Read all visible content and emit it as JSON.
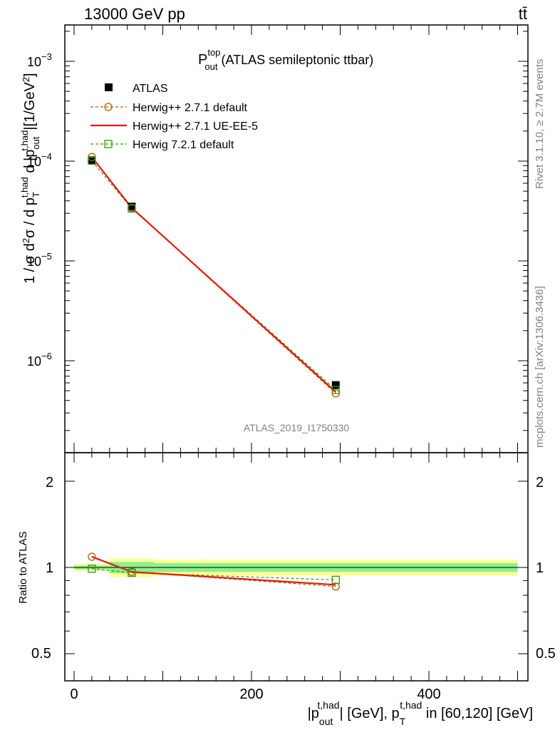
{
  "header": {
    "left": "13000 GeV pp",
    "right": "tt̄"
  },
  "side_labels": {
    "rivet": "Rivet 3.1.10, ≥ 2.7M events",
    "mcplots": "mcplots.cern.ch [arXiv:1306.3436]"
  },
  "plot_title": {
    "main": "P",
    "sup": "top",
    "sub": "out",
    "rest": " (ATLAS semileptonic ttbar)"
  },
  "analysis_id": "ATLAS_2019_I1750330",
  "legend": [
    {
      "label": "ATLAS"
    },
    {
      "label": "Herwig++ 2.7.1 default"
    },
    {
      "label": "Herwig++ 2.7.1 UE-EE-5"
    },
    {
      "label": "Herwig 7.2.1 default"
    }
  ],
  "axes": {
    "ylabel_main": "1 / σ d²σ / d p_T^{t,had} d |p_out^{t,had}| [1/GeV²]",
    "ylabel_ratio": "Ratio to ATLAS",
    "xlabel": "|p_out^{t,had}| [GeV], p_T^{t,had} in [60,120] [GeV]",
    "x_ticks": [
      "0",
      "200",
      "400"
    ],
    "y_ticks_main": [
      "10",
      "10",
      "10",
      "10"
    ],
    "y_ticks_main_exp": [
      "−3",
      "−4",
      "−5",
      "−6"
    ],
    "y_ticks_ratio": [
      "0.5",
      "1",
      "2"
    ]
  },
  "colors": {
    "atlas": "#000000",
    "herwigpp_default": "#b35a00",
    "herwigpp_ueee5": "#e8170c",
    "herwig7": "#2f9a0f",
    "band_inner": "#8cf08c",
    "band_outer": "#ffff99"
  },
  "chart_data": [
    {
      "type": "scatter",
      "title": "P_out^top (ATLAS semileptonic ttbar)",
      "xlabel": "|p_out^{t,had}| [GeV], p_T^{t,had} in [60,120] [GeV]",
      "ylabel": "1 / σ d²σ / d p_T^{t,had} d |p_out^{t,had}| [1/GeV²]",
      "yscale": "log",
      "xlim": [
        -15,
        515
      ],
      "ylim": [
        1.5e-07,
        0.0023
      ],
      "x": [
        20,
        65,
        295
      ],
      "series": [
        {
          "name": "ATLAS",
          "values": [
            0.000102,
            3.5e-05,
            5.7e-07
          ]
        },
        {
          "name": "Herwig++ 2.7.1 default",
          "values": [
            0.00011,
            3.4e-05,
            4.7e-07
          ]
        },
        {
          "name": "Herwig++ 2.7.1 UE-EE-5",
          "values": [
            0.00011,
            3.4e-05,
            4.85e-07
          ]
        },
        {
          "name": "Herwig 7.2.1 default",
          "values": [
            0.000101,
            3.35e-05,
            5.1e-07
          ]
        }
      ]
    },
    {
      "type": "line",
      "ylabel": "Ratio to ATLAS",
      "yscale": "log",
      "xlim": [
        -15,
        515
      ],
      "ylim": [
        0.4,
        2.4
      ],
      "x": [
        20,
        65,
        295
      ],
      "series": [
        {
          "name": "Herwig++ 2.7.1 default",
          "values": [
            1.09,
            0.965,
            0.858
          ]
        },
        {
          "name": "Herwig++ 2.7.1 UE-EE-5",
          "values": [
            1.09,
            0.965,
            0.87
          ]
        },
        {
          "name": "Herwig 7.2.1 default",
          "values": [
            0.99,
            0.958,
            0.905
          ]
        }
      ],
      "bands": [
        {
          "xmin": 0,
          "xmax": 40,
          "inner": [
            0.985,
            1.015
          ],
          "outer": [
            0.97,
            1.03
          ]
        },
        {
          "xmin": 40,
          "xmax": 90,
          "inner": [
            0.955,
            1.045
          ],
          "outer": [
            0.925,
            1.075
          ]
        },
        {
          "xmin": 90,
          "xmax": 500,
          "inner": [
            0.965,
            1.035
          ],
          "outer": [
            0.935,
            1.065
          ]
        }
      ]
    }
  ]
}
